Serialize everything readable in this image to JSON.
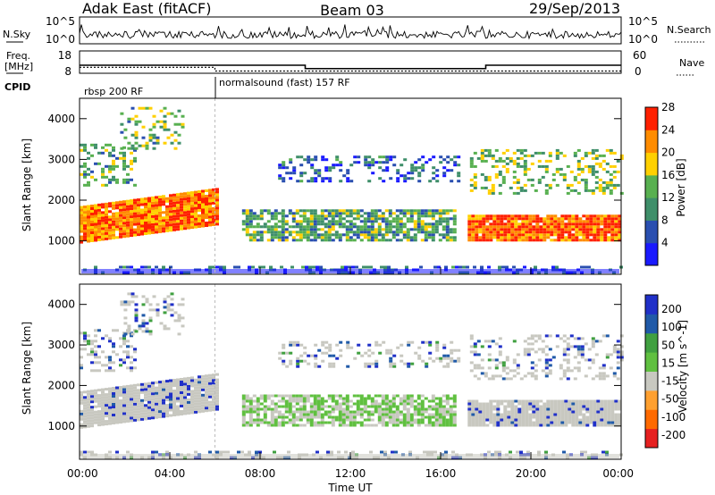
{
  "header": {
    "radar": "Adak East (fitACF)",
    "beam": "Beam 03",
    "date": "29/Sep/2013"
  },
  "noise_panel": {
    "left_label": "N.Sky",
    "left_ticks": [
      "10^5",
      "10^0"
    ],
    "right_ticks": [
      "10^5",
      "10^0"
    ],
    "right_label": "N.Search"
  },
  "freq_panel": {
    "left_label_1": "Freq.",
    "left_label_2": "[MHz]",
    "left_ticks": [
      "18",
      "8"
    ],
    "right_ticks": [
      "60",
      "0"
    ],
    "right_label": "Nave"
  },
  "cpid": {
    "label": "CPID",
    "programs": [
      {
        "name": "rbsp 200 RF",
        "start_hour": 0
      },
      {
        "name": "normalsound (fast) 157 RF",
        "start_hour": 6
      }
    ]
  },
  "colors": {
    "power_scale": [
      "#1a1aff",
      "#2a4fb0",
      "#3f8f6a",
      "#58b050",
      "#ffd000",
      "#ff8c00",
      "#ff2000"
    ],
    "velocity_scale": [
      "#e62020",
      "#ff6a00",
      "#ffa030",
      "#c8c8c0",
      "#60c040",
      "#40a040",
      "#205aa8",
      "#2030c8"
    ]
  },
  "chart_data": [
    {
      "type": "line",
      "panel": "noise",
      "series": [
        {
          "name": "N.Sky"
        },
        {
          "name": "N.Search"
        }
      ],
      "x_range_hours": [
        0,
        24
      ],
      "ylim": [
        "10^0",
        "10^5"
      ],
      "y_scale": "log"
    },
    {
      "type": "line",
      "panel": "frequency / nave",
      "series": [
        {
          "name": "Freq.",
          "x": [
            0,
            6,
            10,
            18,
            24
          ],
          "values": [
            11.6,
            11.6,
            10.1,
            11.6,
            11.6
          ],
          "step": true
        },
        {
          "name": "Nave",
          "x": [
            0,
            6,
            10,
            18,
            24
          ],
          "values": [
            16,
            6,
            6,
            6,
            6
          ],
          "step": true
        }
      ],
      "ylim_left": [
        8,
        18
      ],
      "ylim_right": [
        0,
        60
      ]
    },
    {
      "type": "heatmap",
      "panel": "power",
      "ylabel": "Slant Range [km]",
      "yticks": [
        "1000",
        "2000",
        "3000",
        "4000"
      ],
      "ylim": [
        180,
        4500
      ],
      "xlim_hours": [
        0,
        24
      ],
      "colorbar": {
        "label": "Power [dB]",
        "ticks": [
          "4",
          "8",
          "12",
          "16",
          "20",
          "24",
          "28"
        ],
        "range": [
          0,
          30
        ]
      },
      "features": [
        {
          "hours": [
            0,
            6
          ],
          "range_km": [
            1000,
            1900
          ],
          "level": "high"
        },
        {
          "hours": [
            7.2,
            16.5
          ],
          "range_km": [
            1100,
            1800
          ],
          "level": "medium"
        },
        {
          "hours": [
            9,
            17
          ],
          "range_km": [
            2400,
            3200
          ],
          "level": "low"
        },
        {
          "hours": [
            17.2,
            24
          ],
          "range_km": [
            1050,
            1650
          ],
          "level": "high"
        }
      ]
    },
    {
      "type": "heatmap",
      "panel": "velocity",
      "ylabel": "Slant Range [km]",
      "yticks": [
        "1000",
        "2000",
        "3000",
        "4000"
      ],
      "ylim": [
        180,
        4500
      ],
      "xlim_hours": [
        0,
        24
      ],
      "colorbar": {
        "label": "Velocity [m s^-1]",
        "ticks": [
          "200",
          "100",
          "50",
          "15",
          "-15",
          "-50",
          "-100",
          "-200"
        ]
      },
      "xlabel": "Time UT",
      "xticks": [
        "00:00",
        "04:00",
        "08:00",
        "12:00",
        "16:00",
        "20:00",
        "00:00"
      ]
    }
  ]
}
